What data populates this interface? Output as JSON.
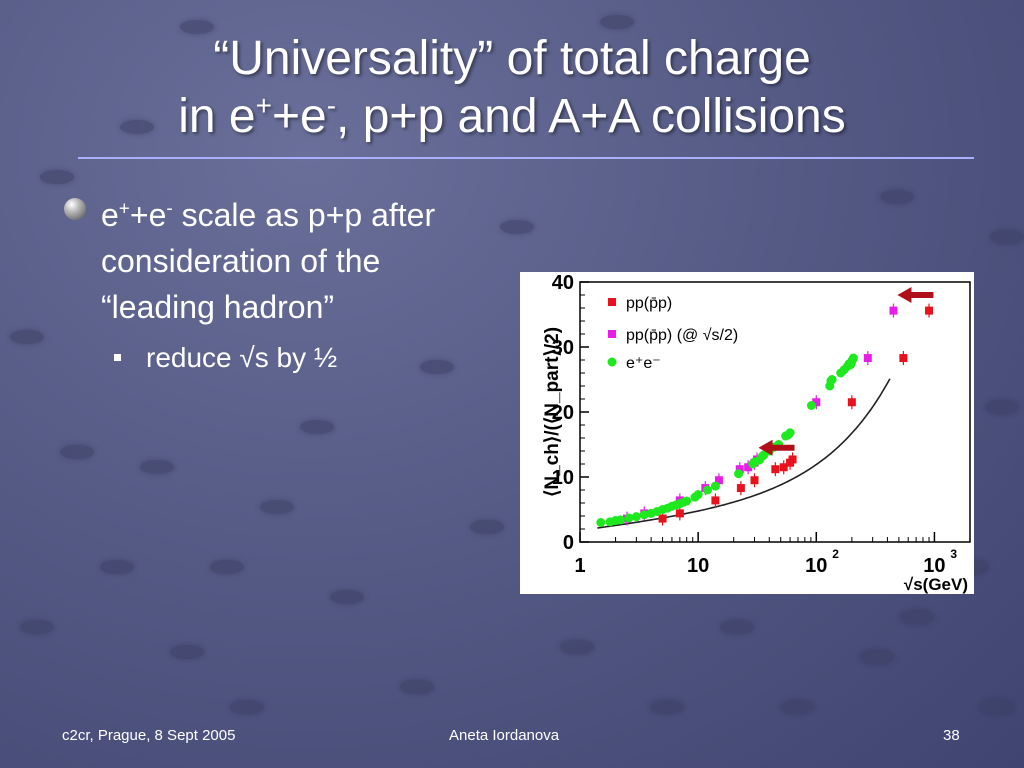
{
  "slide": {
    "title_line1": "“Universality” of total charge",
    "title_line2": {
      "a": "in e",
      "sup1": "+",
      "b": "+e",
      "sup2": "-",
      "c": ", p+p and A+A collisions"
    },
    "bullet": {
      "a": "e",
      "sup1": "+",
      "b": "+e",
      "sup2": "-",
      "c": " scale as p+p after consideration of the “leading hadron”"
    },
    "sub_bullet": "reduce √s by ½",
    "footer": {
      "left": "c2cr, Prague, 8 Sept 2005",
      "center": "Aneta Iordanova",
      "right": "38"
    },
    "colors": {
      "background": "#565b86",
      "rule": "#a9b0ff",
      "arrow": "#b0101a"
    }
  },
  "chart_data": {
    "type": "scatter",
    "xscale": "log",
    "xlim": [
      1,
      2000
    ],
    "ylim": [
      0,
      40
    ],
    "ylabel": "⟨N_ch⟩/(⟨N_part⟩/2)",
    "xlabel": "√s(GeV)",
    "xticks": [
      "1",
      "10",
      "10^2",
      "10^3"
    ],
    "yticks": [
      0,
      10,
      20,
      30,
      40
    ],
    "legend_position": "top-left",
    "series": [
      {
        "name": "pp(p̄p)",
        "color": "#e8121e",
        "marker": "square",
        "points": [
          [
            5,
            3.6
          ],
          [
            7,
            4.4
          ],
          [
            14,
            6.4
          ],
          [
            23,
            8.3
          ],
          [
            30,
            9.5
          ],
          [
            45,
            11.2
          ],
          [
            53,
            11.5
          ],
          [
            60,
            12.2
          ],
          [
            63,
            12.7
          ],
          [
            200,
            21.5
          ],
          [
            546,
            28.3
          ],
          [
            900,
            35.6
          ]
        ]
      },
      {
        "name": "pp(p̄p) (@ √s/2)",
        "color": "#e81ee8",
        "marker": "square",
        "points": [
          [
            2.5,
            3.6
          ],
          [
            3.5,
            4.4
          ],
          [
            7,
            6.4
          ],
          [
            11.5,
            8.3
          ],
          [
            15,
            9.5
          ],
          [
            22.5,
            11.2
          ],
          [
            26.5,
            11.5
          ],
          [
            30,
            12.2
          ],
          [
            31.5,
            12.7
          ],
          [
            100,
            21.5
          ],
          [
            273,
            28.3
          ],
          [
            450,
            35.6
          ]
        ]
      },
      {
        "name": "e⁺e⁻",
        "color": "#1ee81e",
        "marker": "circle",
        "points": [
          [
            1.5,
            3.0
          ],
          [
            1.8,
            3.1
          ],
          [
            2,
            3.3
          ],
          [
            2.2,
            3.4
          ],
          [
            2.6,
            3.7
          ],
          [
            3,
            3.9
          ],
          [
            3.5,
            4.2
          ],
          [
            4,
            4.4
          ],
          [
            4.5,
            4.7
          ],
          [
            5,
            5.0
          ],
          [
            5.5,
            5.2
          ],
          [
            6,
            5.5
          ],
          [
            6.5,
            5.7
          ],
          [
            7,
            5.9
          ],
          [
            7.5,
            6.1
          ],
          [
            8,
            6.3
          ],
          [
            9.4,
            6.9
          ],
          [
            10,
            7.3
          ],
          [
            12,
            8.0
          ],
          [
            14,
            8.6
          ],
          [
            22,
            10.5
          ],
          [
            29,
            12.0
          ],
          [
            30,
            12.3
          ],
          [
            33,
            12.6
          ],
          [
            35,
            13.2
          ],
          [
            36,
            13.4
          ],
          [
            40,
            14.0
          ],
          [
            44,
            14.6
          ],
          [
            48,
            15.0
          ],
          [
            55,
            16.3
          ],
          [
            58,
            16.5
          ],
          [
            60,
            16.8
          ],
          [
            91,
            21.0
          ],
          [
            130,
            24.0
          ],
          [
            133,
            24.8
          ],
          [
            136,
            25.0
          ],
          [
            161,
            26.0
          ],
          [
            172,
            26.5
          ],
          [
            183,
            27.0
          ],
          [
            189,
            27.4
          ],
          [
            196,
            27.3
          ],
          [
            200,
            27.8
          ],
          [
            202,
            28.0
          ],
          [
            206,
            28.3
          ]
        ]
      }
    ],
    "fit_curve": "solid black line through e⁺e⁻ data",
    "annotations": [
      {
        "type": "arrow",
        "color": "#b0101a",
        "at": [
          30,
          14.5
        ]
      },
      {
        "type": "arrow",
        "color": "#b0101a",
        "at": [
          450,
          38
        ]
      }
    ]
  }
}
